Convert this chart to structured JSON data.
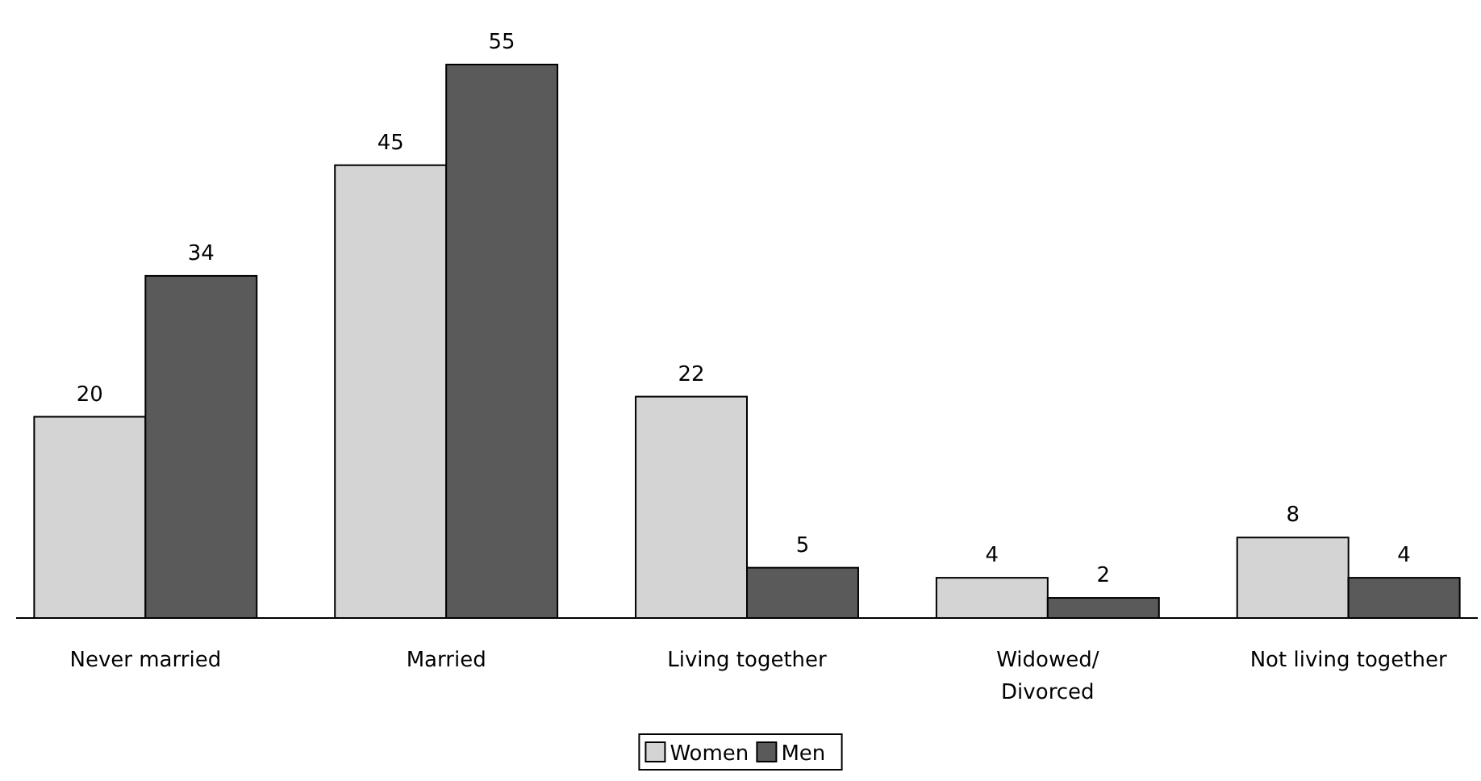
{
  "chart_data": {
    "type": "bar",
    "categories": [
      "Never married",
      "Married",
      "Living together",
      "Widowed/\nDivorced",
      "Not living together"
    ],
    "series": [
      {
        "name": "Women",
        "color": "#d4d4d4",
        "values": [
          20,
          45,
          22,
          4,
          8
        ]
      },
      {
        "name": "Men",
        "color": "#5a5a5a",
        "values": [
          34,
          55,
          5,
          2,
          4
        ]
      }
    ],
    "data_labels": true,
    "legend": "bottom"
  }
}
